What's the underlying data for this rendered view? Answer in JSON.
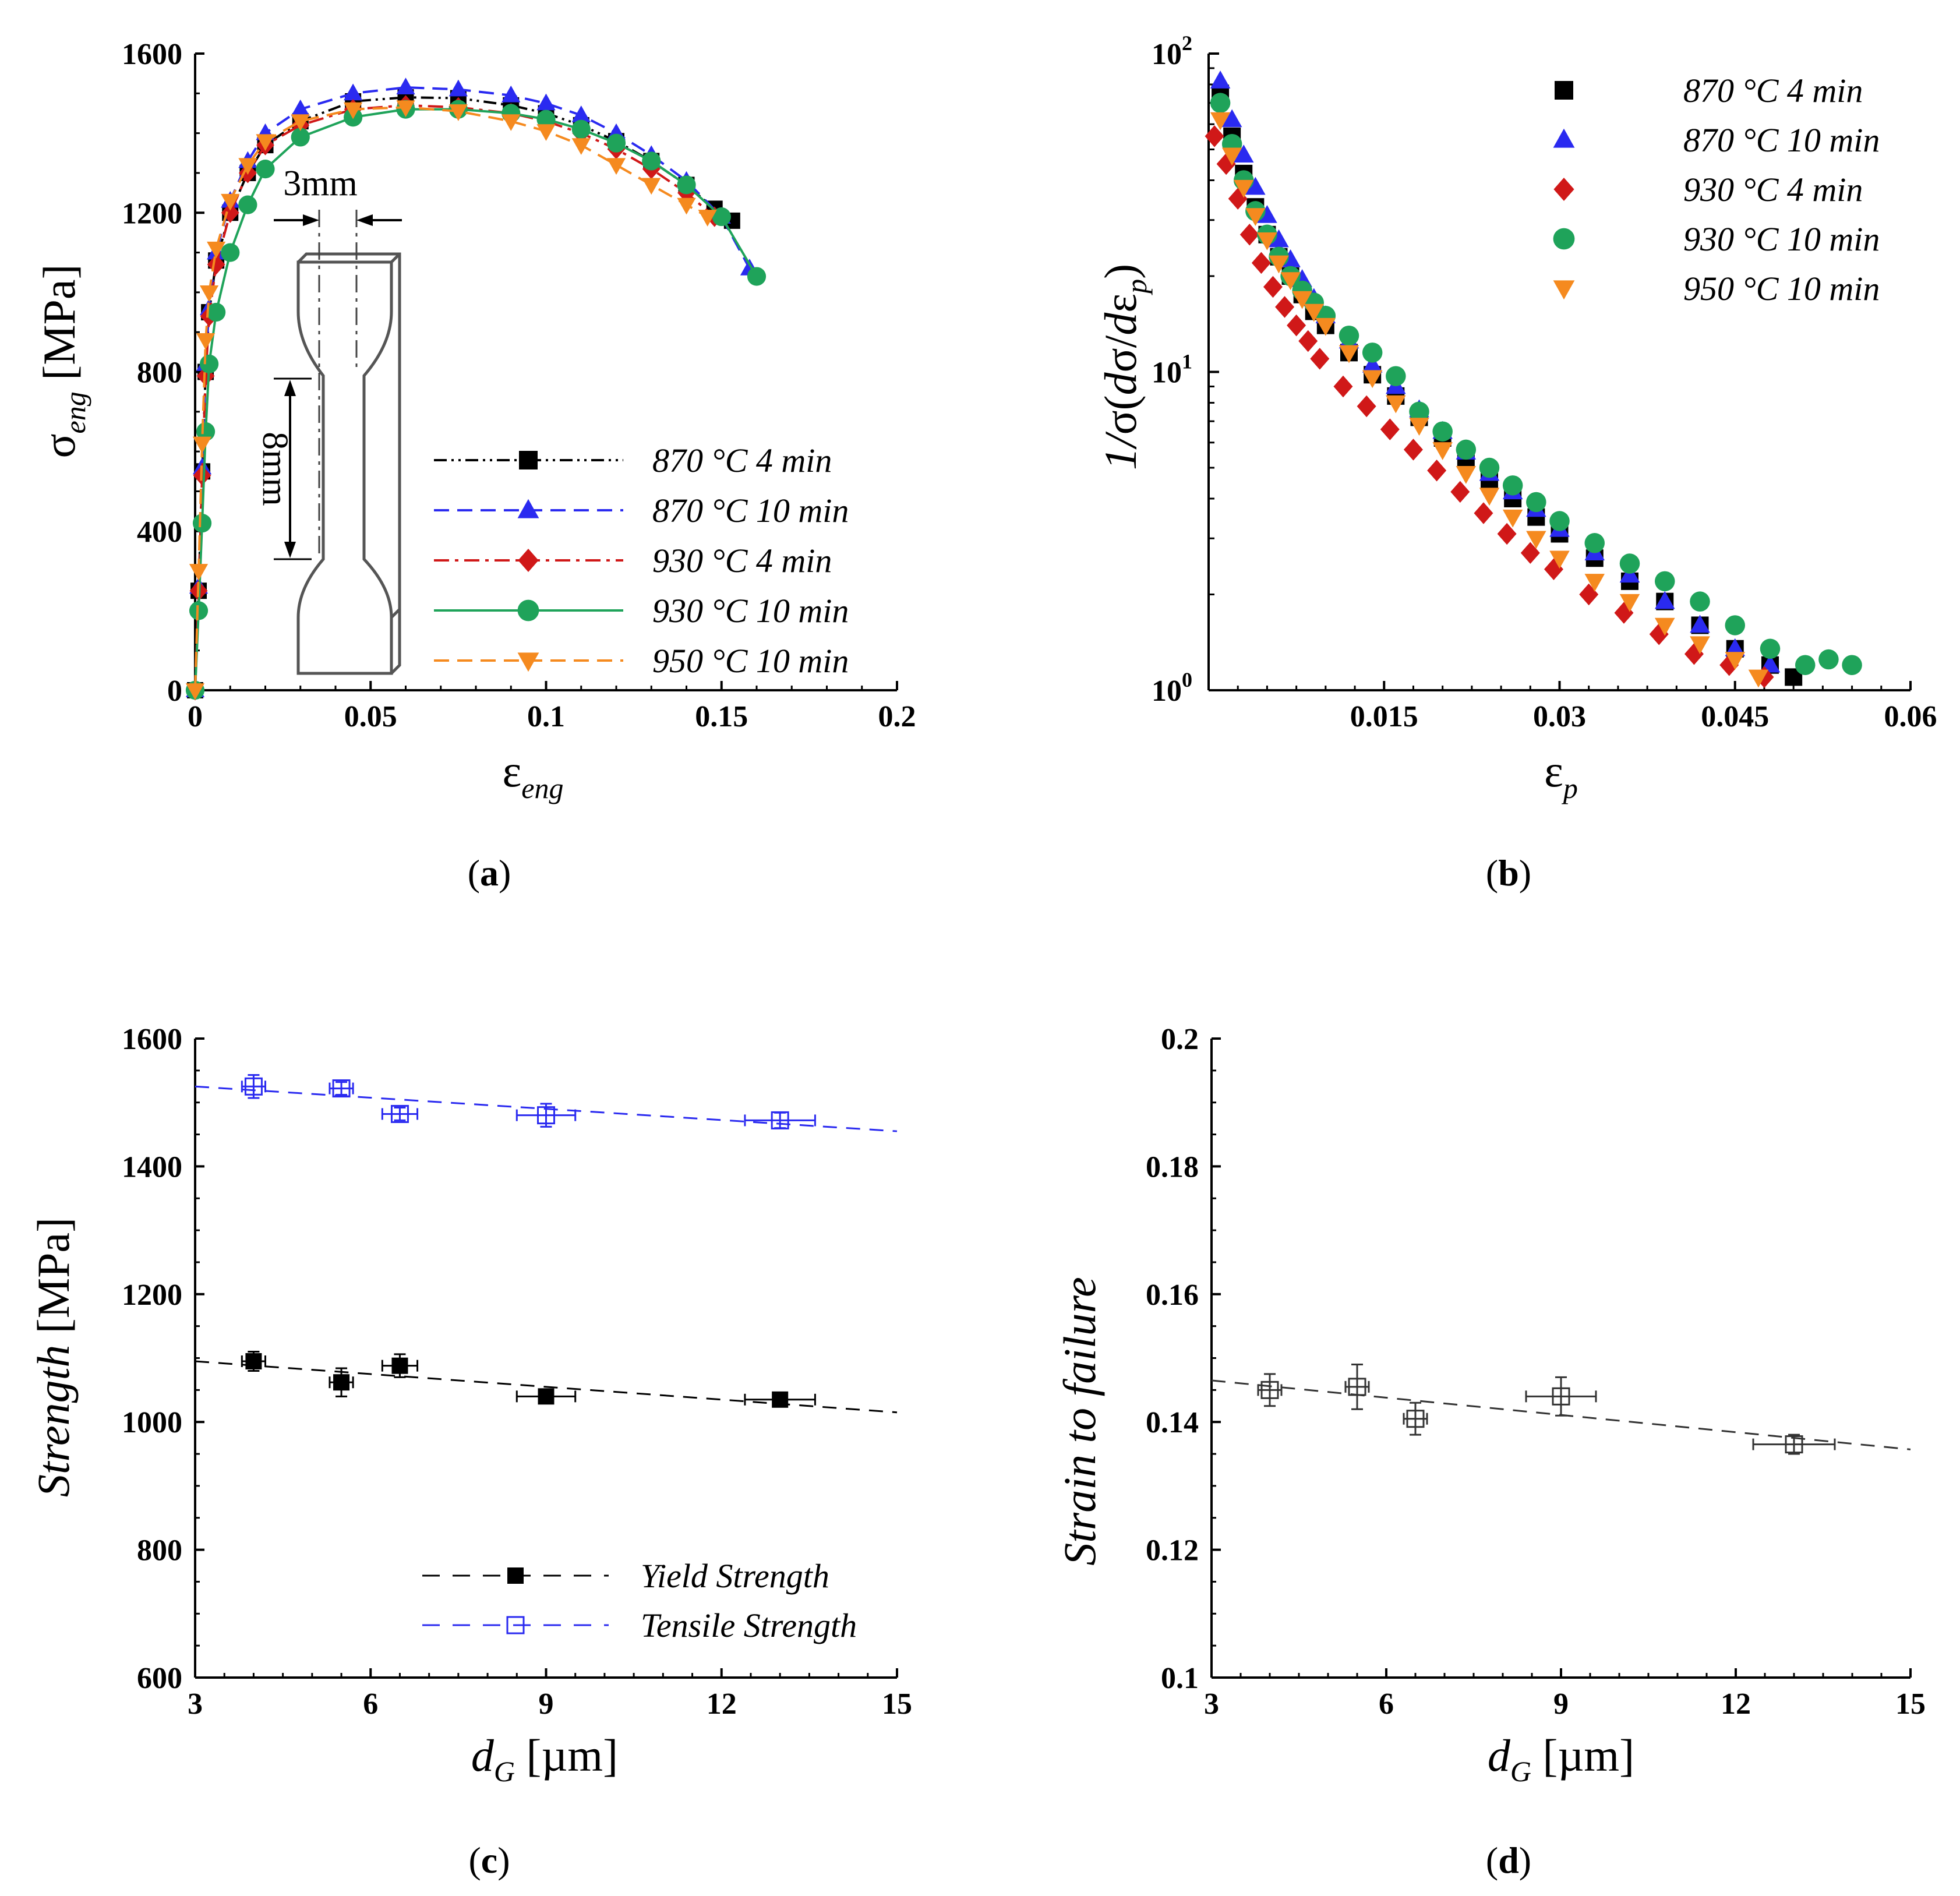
{
  "panels": {
    "a": {
      "label": "a"
    },
    "b": {
      "label": "b"
    },
    "c": {
      "label": "c"
    },
    "d": {
      "label": "d"
    }
  },
  "colors": {
    "870C 4 min": "#000000",
    "870C 10 min": "#2a2af0",
    "930C 4 min": "#d01818",
    "930C 10 min": "#1fa35a",
    "950C 10 min": "#f58a1f",
    "yield": "#000000",
    "tensile": "#2a2af0",
    "failure": "#333333"
  },
  "icons": {
    "specimen": "dogbone-tensile-specimen-icon"
  },
  "chart_data": [
    {
      "id": "a",
      "type": "line",
      "title": "",
      "xlabel": "ε_eng",
      "ylabel": "σ_eng [MPa]",
      "xlim": [
        0,
        0.2
      ],
      "ylim": [
        0,
        1600
      ],
      "xticks": [
        "0",
        "0.05",
        "0.1",
        "0.15",
        "0.2"
      ],
      "yticks": [
        "0",
        "400",
        "800",
        "1200",
        "1600"
      ],
      "specimen_inset": {
        "width_label": "3mm",
        "gauge_label": "8mm"
      },
      "series": [
        {
          "name": "870 °C 4 min",
          "style": "dash-dot-dot",
          "marker": "square",
          "x": [
            0,
            0.001,
            0.002,
            0.003,
            0.004,
            0.006,
            0.01,
            0.015,
            0.02,
            0.03,
            0.045,
            0.06,
            0.075,
            0.09,
            0.1,
            0.11,
            0.12,
            0.13,
            0.14,
            0.148,
            0.153
          ],
          "y": [
            0,
            250,
            550,
            800,
            950,
            1080,
            1200,
            1300,
            1370,
            1430,
            1480,
            1490,
            1488,
            1470,
            1450,
            1420,
            1380,
            1330,
            1270,
            1210,
            1180
          ]
        },
        {
          "name": "870 °C 10 min",
          "style": "dashed",
          "marker": "triangle-up",
          "x": [
            0,
            0.001,
            0.002,
            0.003,
            0.004,
            0.006,
            0.01,
            0.015,
            0.02,
            0.03,
            0.045,
            0.06,
            0.075,
            0.09,
            0.1,
            0.11,
            0.12,
            0.13,
            0.14,
            0.15,
            0.158
          ],
          "y": [
            0,
            260,
            560,
            820,
            960,
            1100,
            1230,
            1330,
            1400,
            1460,
            1500,
            1515,
            1510,
            1495,
            1475,
            1445,
            1400,
            1345,
            1280,
            1190,
            1060
          ]
        },
        {
          "name": "930 °C 4 min",
          "style": "dash-dot",
          "marker": "diamond",
          "x": [
            0,
            0.001,
            0.002,
            0.003,
            0.004,
            0.006,
            0.01,
            0.015,
            0.02,
            0.03,
            0.045,
            0.06,
            0.075,
            0.09,
            0.1,
            0.11,
            0.12,
            0.13,
            0.14,
            0.148
          ],
          "y": [
            0,
            250,
            540,
            790,
            940,
            1070,
            1200,
            1300,
            1370,
            1420,
            1460,
            1470,
            1465,
            1450,
            1430,
            1400,
            1360,
            1310,
            1250,
            1190
          ]
        },
        {
          "name": "930 °C 10 min",
          "style": "solid",
          "marker": "circle",
          "x": [
            0,
            0.001,
            0.002,
            0.003,
            0.004,
            0.006,
            0.01,
            0.015,
            0.02,
            0.03,
            0.045,
            0.06,
            0.075,
            0.09,
            0.1,
            0.11,
            0.12,
            0.13,
            0.14,
            0.15,
            0.16
          ],
          "y": [
            0,
            200,
            420,
            650,
            820,
            950,
            1100,
            1220,
            1310,
            1390,
            1440,
            1460,
            1460,
            1450,
            1435,
            1410,
            1375,
            1330,
            1270,
            1190,
            1040
          ]
        },
        {
          "name": "950 °C 10 min",
          "style": "dashed",
          "marker": "triangle-down",
          "x": [
            0,
            0.001,
            0.002,
            0.003,
            0.004,
            0.006,
            0.01,
            0.015,
            0.02,
            0.03,
            0.045,
            0.06,
            0.075,
            0.09,
            0.1,
            0.11,
            0.12,
            0.13,
            0.14,
            0.146
          ],
          "y": [
            0,
            300,
            620,
            880,
            1000,
            1110,
            1230,
            1320,
            1380,
            1430,
            1460,
            1465,
            1455,
            1430,
            1405,
            1370,
            1320,
            1270,
            1220,
            1190
          ]
        }
      ]
    },
    {
      "id": "b",
      "type": "scatter",
      "title": "",
      "xlabel": "ε_p",
      "ylabel": "1/σ(dσ/dε_p)",
      "yscale": "log",
      "xlim": [
        0,
        0.06
      ],
      "ylim": [
        1,
        100
      ],
      "xticks": [
        "0.015",
        "0.03",
        "0.045",
        "0.06"
      ],
      "yticks": [
        "10^0",
        "10^1",
        "10^2"
      ],
      "series": [
        {
          "name": "870 °C 4 min",
          "marker": "square",
          "x": [
            0.001,
            0.002,
            0.003,
            0.004,
            0.005,
            0.006,
            0.007,
            0.008,
            0.009,
            0.01,
            0.012,
            0.014,
            0.016,
            0.018,
            0.02,
            0.022,
            0.024,
            0.026,
            0.028,
            0.03,
            0.033,
            0.036,
            0.039,
            0.042,
            0.045,
            0.048,
            0.05
          ],
          "y": [
            75,
            55,
            42,
            33,
            27,
            23,
            20,
            17.5,
            15.5,
            14,
            11.5,
            9.8,
            8.4,
            7.2,
            6.2,
            5.3,
            4.6,
            4.0,
            3.5,
            3.1,
            2.6,
            2.2,
            1.9,
            1.6,
            1.35,
            1.2,
            1.1
          ]
        },
        {
          "name": "870 °C 10 min",
          "marker": "triangle-up",
          "x": [
            0.001,
            0.002,
            0.003,
            0.004,
            0.005,
            0.006,
            0.007,
            0.008,
            0.009,
            0.01,
            0.012,
            0.014,
            0.016,
            0.018,
            0.02,
            0.022,
            0.024,
            0.026,
            0.028,
            0.03,
            0.033,
            0.036,
            0.039,
            0.042,
            0.045,
            0.048
          ],
          "y": [
            82,
            62,
            48,
            38,
            31,
            26,
            22.5,
            19.5,
            17,
            15,
            12.5,
            10.5,
            9,
            7.6,
            6.5,
            5.6,
            4.8,
            4.2,
            3.7,
            3.2,
            2.7,
            2.3,
            1.9,
            1.6,
            1.35,
            1.2
          ]
        },
        {
          "name": "930 °C 4 min",
          "marker": "diamond",
          "x": [
            0.0005,
            0.0015,
            0.0025,
            0.0035,
            0.0045,
            0.0055,
            0.0065,
            0.0075,
            0.0085,
            0.0095,
            0.0115,
            0.0135,
            0.0155,
            0.0175,
            0.0195,
            0.0215,
            0.0235,
            0.0255,
            0.0275,
            0.0295,
            0.0325,
            0.0355,
            0.0385,
            0.0415,
            0.0445,
            0.0475
          ],
          "y": [
            55,
            45,
            35,
            27,
            22,
            18.5,
            16,
            14,
            12.5,
            11,
            9,
            7.8,
            6.6,
            5.7,
            4.9,
            4.2,
            3.6,
            3.1,
            2.7,
            2.4,
            2.0,
            1.75,
            1.5,
            1.3,
            1.2,
            1.1
          ]
        },
        {
          "name": "930 °C 10 min",
          "marker": "circle",
          "x": [
            0.001,
            0.002,
            0.003,
            0.004,
            0.005,
            0.006,
            0.007,
            0.008,
            0.009,
            0.01,
            0.012,
            0.014,
            0.016,
            0.018,
            0.02,
            0.022,
            0.024,
            0.026,
            0.028,
            0.03,
            0.033,
            0.036,
            0.039,
            0.042,
            0.045,
            0.048,
            0.051,
            0.053,
            0.055
          ],
          "y": [
            70,
            52,
            40,
            32,
            27,
            23,
            20,
            18,
            16.5,
            15,
            13,
            11.5,
            9.7,
            7.5,
            6.5,
            5.7,
            5.0,
            4.4,
            3.9,
            3.4,
            2.9,
            2.5,
            2.2,
            1.9,
            1.6,
            1.35,
            1.2,
            1.25,
            1.2
          ]
        },
        {
          "name": "950 °C 10 min",
          "marker": "triangle-down",
          "x": [
            0.001,
            0.002,
            0.003,
            0.004,
            0.005,
            0.006,
            0.007,
            0.008,
            0.009,
            0.01,
            0.012,
            0.014,
            0.016,
            0.018,
            0.02,
            0.022,
            0.024,
            0.026,
            0.028,
            0.03,
            0.033,
            0.036,
            0.039,
            0.042,
            0.045,
            0.047
          ],
          "y": [
            62,
            48,
            38,
            31,
            26,
            22,
            19.5,
            17,
            15.5,
            14,
            11.5,
            9.6,
            8.0,
            6.8,
            5.7,
            4.8,
            4.1,
            3.5,
            3.0,
            2.6,
            2.2,
            1.9,
            1.6,
            1.4,
            1.25,
            1.1
          ]
        }
      ]
    },
    {
      "id": "c",
      "type": "scatter",
      "title": "",
      "xlabel": "d_G [µm]",
      "ylabel": "Strength [MPa]",
      "xlim": [
        3,
        15
      ],
      "ylim": [
        600,
        1600
      ],
      "xticks": [
        "3",
        "6",
        "9",
        "12",
        "15"
      ],
      "yticks": [
        "600",
        "800",
        "1000",
        "1200",
        "1400",
        "1600"
      ],
      "series": [
        {
          "name": "Yield Strength",
          "marker": "filled-square",
          "x": [
            4,
            5.5,
            6.5,
            9,
            13
          ],
          "y": [
            1095,
            1062,
            1088,
            1040,
            1035
          ],
          "xerr": [
            0.2,
            0.2,
            0.3,
            0.5,
            0.6
          ],
          "yerr": [
            15,
            22,
            18,
            8,
            5
          ],
          "fit": {
            "x": [
              3,
              15
            ],
            "y": [
              1095,
              1015
            ]
          }
        },
        {
          "name": "Tensile Strength",
          "marker": "open-square",
          "x": [
            4,
            5.5,
            6.5,
            9,
            13
          ],
          "y": [
            1525,
            1522,
            1482,
            1480,
            1472
          ],
          "xerr": [
            0.2,
            0.2,
            0.3,
            0.5,
            0.6
          ],
          "yerr": [
            18,
            10,
            10,
            18,
            12
          ],
          "fit": {
            "x": [
              3,
              15
            ],
            "y": [
              1525,
              1455
            ]
          }
        }
      ]
    },
    {
      "id": "d",
      "type": "scatter",
      "title": "",
      "xlabel": "d_G [µm]",
      "ylabel": "Strain to failure",
      "xlim": [
        3,
        15
      ],
      "ylim": [
        0.1,
        0.2
      ],
      "xticks": [
        "3",
        "6",
        "9",
        "12",
        "15"
      ],
      "yticks": [
        "0.1",
        "0.12",
        "0.14",
        "0.16",
        "0.18",
        "0.2"
      ],
      "series": [
        {
          "name": "Strain to failure",
          "marker": "open-square",
          "x": [
            4,
            5.5,
            6.5,
            9,
            13
          ],
          "y": [
            0.145,
            0.1455,
            0.1405,
            0.144,
            0.1365
          ],
          "xerr": [
            0.2,
            0.2,
            0.2,
            0.6,
            0.7
          ],
          "yerr": [
            0.0025,
            0.0035,
            0.0025,
            0.003,
            0.0015
          ],
          "fit": {
            "x": [
              3,
              15
            ],
            "y": [
              0.1465,
              0.1357
            ]
          }
        }
      ]
    }
  ]
}
